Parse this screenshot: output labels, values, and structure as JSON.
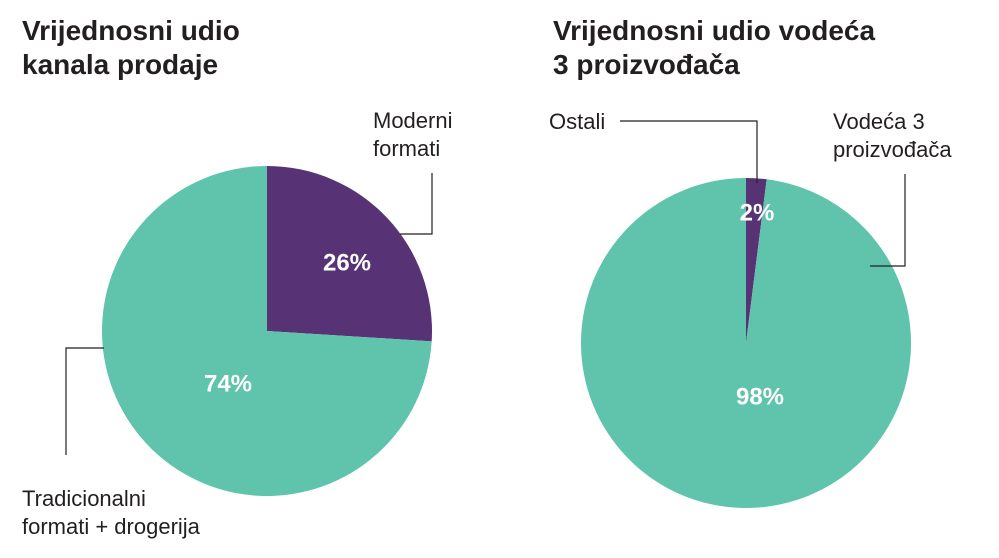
{
  "chart_data": [
    {
      "type": "pie",
      "title": [
        "Vrijednosni udio",
        "kanala prodaje"
      ],
      "slices": [
        {
          "name": [
            "Moderni",
            "formati"
          ],
          "value": 26,
          "label": "26%",
          "color": "#573375"
        },
        {
          "name": [
            "Tradicionalni",
            "formati + drogerija"
          ],
          "value": 74,
          "label": "74%",
          "color": "#5fc4ab"
        }
      ]
    },
    {
      "type": "pie",
      "title": [
        "Vrijednosni udio vodeća",
        "3 proizvođača"
      ],
      "slices": [
        {
          "name": [
            "Ostali"
          ],
          "value": 2,
          "label": "2%",
          "color": "#573375"
        },
        {
          "name": [
            "Vodeća 3",
            "proizvođača"
          ],
          "value": 98,
          "label": "98%",
          "color": "#5fc4ab"
        }
      ]
    }
  ]
}
